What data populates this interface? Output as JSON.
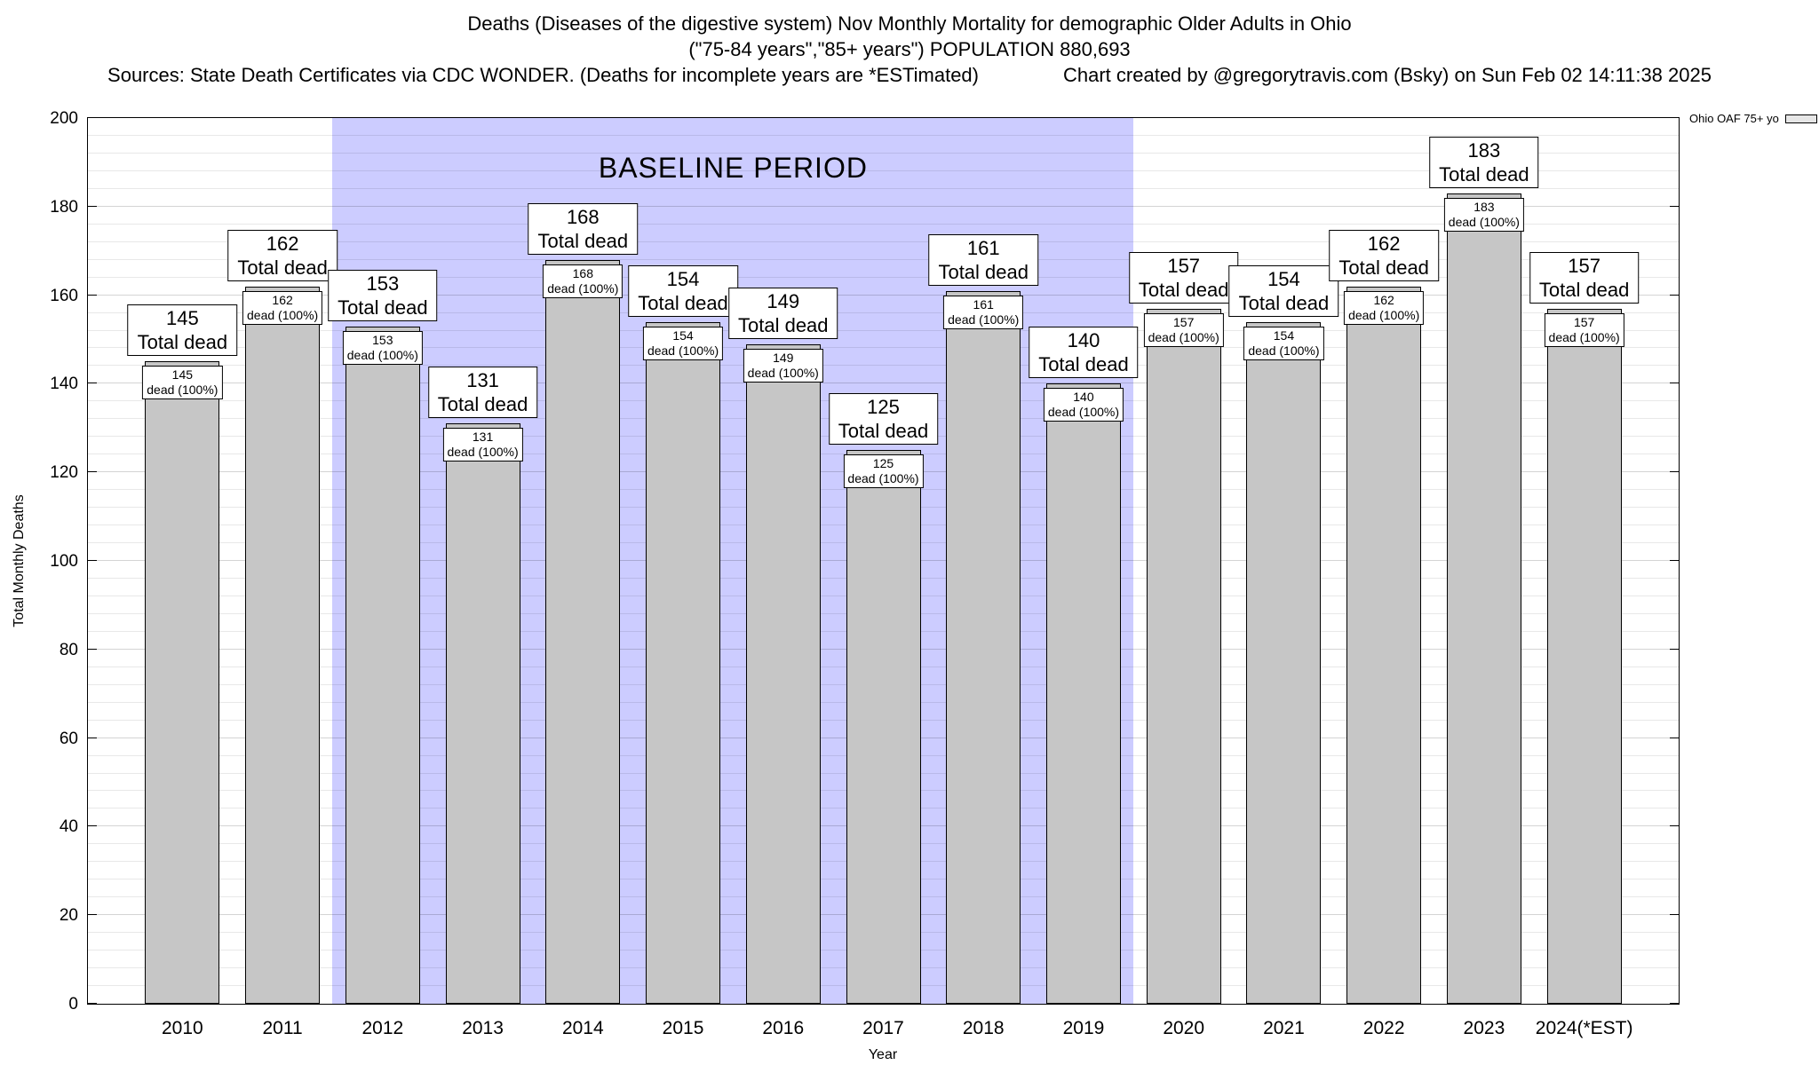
{
  "header": {
    "title": "Deaths (Diseases of the digestive system) Nov Monthly Mortality for demographic Older Adults in Ohio",
    "subtitle": "(\"75-84 years\",\"85+ years\") POPULATION 880,693",
    "sources": "Sources: State Death Certificates via CDC WONDER. (Deaths for incomplete years are *ESTimated)",
    "credit": "Chart created by @gregorytravis.com (Bsky) on Sun Feb 02 14:11:38 2025"
  },
  "chart_data": {
    "type": "bar",
    "title": "Deaths (Diseases of the digestive system) Nov Monthly Mortality for demographic Older Adults in Ohio",
    "categories": [
      "2010",
      "2011",
      "2012",
      "2013",
      "2014",
      "2015",
      "2016",
      "2017",
      "2018",
      "2019",
      "2020",
      "2021",
      "2022",
      "2023",
      "2024(*EST)"
    ],
    "values": [
      145,
      162,
      153,
      131,
      168,
      154,
      149,
      125,
      161,
      140,
      157,
      154,
      162,
      183,
      157
    ],
    "bar_top_label_suffix": "Total dead",
    "bar_inner_label_suffix": "dead (100%)",
    "xlabel": "Year",
    "ylabel": "Total Monthly Deaths",
    "ylim": [
      0,
      200
    ],
    "yticks": [
      0,
      20,
      40,
      60,
      80,
      100,
      120,
      140,
      160,
      180,
      200
    ],
    "minor_grid_step": 4,
    "grid": true,
    "baseline": {
      "label": "BASELINE PERIOD",
      "start_year": "2012",
      "end_year": "2019",
      "start_index": 2,
      "end_index": 9,
      "fill": "#ccccff"
    },
    "legend": {
      "label": "Ohio OAF 75+ yo",
      "position": "top-right"
    },
    "colors": {
      "bar_fill": "#c6c6c6",
      "bar_border": "#000000",
      "label_box_bg": "#ffffff",
      "baseline_fill": "#ccccff"
    }
  }
}
